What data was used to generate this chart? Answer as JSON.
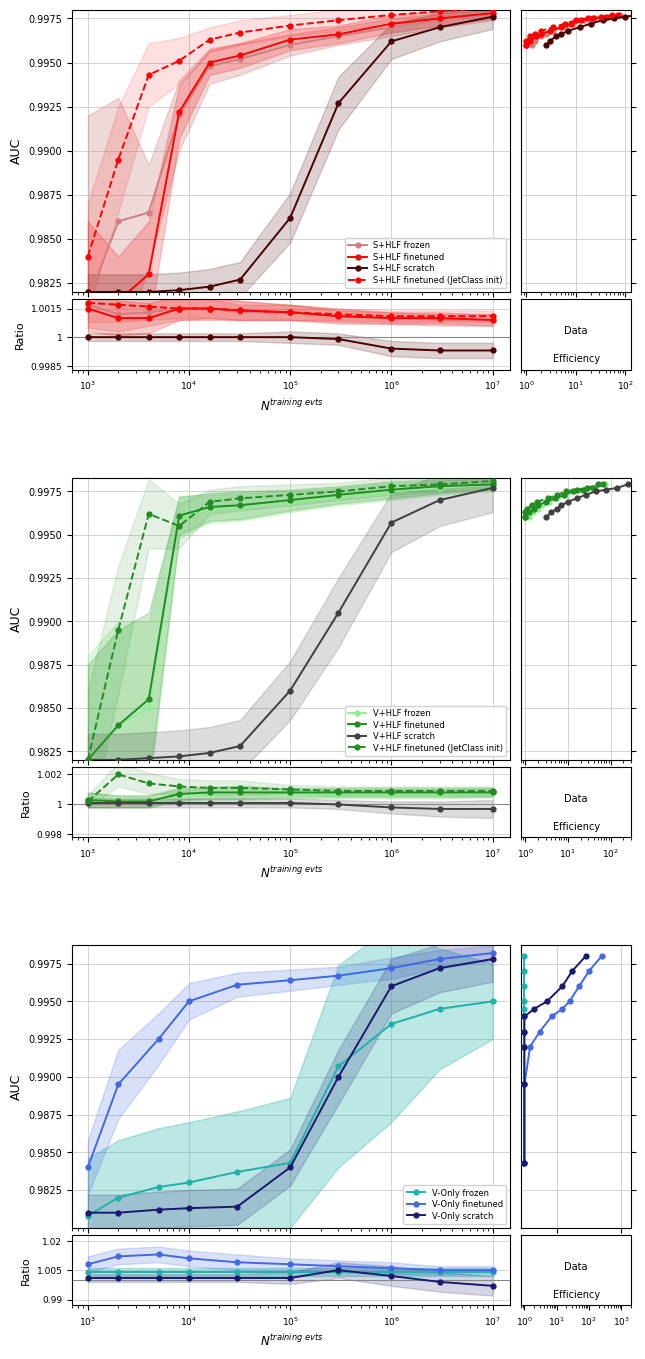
{
  "panel1": {
    "colors": {
      "frozen": "#cd8080",
      "finetuned": "#ff0000",
      "scratch": "#4a0000",
      "jetclass": "#ff0000"
    },
    "x_vals": [
      1000,
      2000,
      4000,
      8000,
      16000,
      32000,
      100000,
      300000,
      1000000,
      3000000,
      10000000
    ],
    "frozen_y": [
      0.9815,
      0.986,
      0.9865,
      0.992,
      0.9948,
      0.9952,
      0.996,
      0.9965,
      0.997,
      0.9974,
      0.9977
    ],
    "frozen_lo": [
      0.973,
      0.978,
      0.9835,
      0.99,
      0.9938,
      0.9943,
      0.9954,
      0.996,
      0.9965,
      0.997,
      0.9974
    ],
    "frozen_hi": [
      0.992,
      0.993,
      0.9892,
      0.994,
      0.9958,
      0.9961,
      0.9966,
      0.997,
      0.9975,
      0.9978,
      0.998
    ],
    "finetuned_y": [
      0.982,
      0.9815,
      0.983,
      0.9922,
      0.995,
      0.9954,
      0.9963,
      0.9966,
      0.9972,
      0.9975,
      0.9978
    ],
    "finetuned_lo": [
      0.978,
      0.979,
      0.98,
      0.9907,
      0.9943,
      0.9947,
      0.9957,
      0.9961,
      0.9967,
      0.9971,
      0.9975
    ],
    "finetuned_hi": [
      0.986,
      0.984,
      0.986,
      0.9937,
      0.9957,
      0.9961,
      0.9969,
      0.9971,
      0.9977,
      0.9979,
      0.9981
    ],
    "scratch_y": [
      0.982,
      0.982,
      0.982,
      0.9821,
      0.9823,
      0.9827,
      0.9862,
      0.9927,
      0.9962,
      0.997,
      0.9976
    ],
    "scratch_lo": [
      0.981,
      0.981,
      0.981,
      0.9811,
      0.9813,
      0.9817,
      0.9848,
      0.9912,
      0.9952,
      0.9962,
      0.9969
    ],
    "scratch_hi": [
      0.983,
      0.983,
      0.983,
      0.9831,
      0.9833,
      0.9837,
      0.9876,
      0.9942,
      0.9972,
      0.9978,
      0.9983
    ],
    "jetclass_y": [
      0.984,
      0.9895,
      0.9943,
      0.9951,
      0.9963,
      0.9967,
      0.9971,
      0.9974,
      0.9977,
      0.9979,
      0.9981
    ],
    "jetclass_lo": [
      0.981,
      0.9865,
      0.9925,
      0.9938,
      0.9956,
      0.996,
      0.9965,
      0.9968,
      0.9972,
      0.9975,
      0.9977
    ],
    "jetclass_hi": [
      0.987,
      0.9925,
      0.9961,
      0.9964,
      0.997,
      0.9974,
      0.9977,
      0.998,
      0.9982,
      0.9983,
      0.9985
    ],
    "ratio_frozen_y": [
      1.0017,
      1.0012,
      1.0013,
      1.0015,
      1.0015,
      1.0013,
      1.0013,
      1.0011,
      1.001,
      1.0009,
      1.0009
    ],
    "ratio_frozen_lo": [
      1.0005,
      1.0003,
      1.0006,
      1.0009,
      1.001,
      1.0009,
      1.0009,
      1.0007,
      1.0007,
      1.0006,
      1.0006
    ],
    "ratio_frozen_hi": [
      1.0029,
      1.0021,
      1.002,
      1.0021,
      1.002,
      1.0017,
      1.0017,
      1.0015,
      1.0013,
      1.0012,
      1.0012
    ],
    "ratio_finetuned_y": [
      1.0015,
      1.001,
      1.001,
      1.0015,
      1.0015,
      1.0014,
      1.0013,
      1.0011,
      1.001,
      1.001,
      1.0009
    ],
    "ratio_finetuned_lo": [
      1.0003,
      1.0001,
      1.0002,
      1.0009,
      1.0009,
      1.0009,
      1.0009,
      1.0008,
      1.0007,
      1.0007,
      1.0006
    ],
    "ratio_finetuned_hi": [
      1.0027,
      1.0019,
      1.0018,
      1.0021,
      1.0021,
      1.0019,
      1.0017,
      1.0014,
      1.0013,
      1.0013,
      1.0012
    ],
    "ratio_scratch_y": [
      1.0,
      1.0,
      1.0,
      1.0,
      1.0,
      1.0,
      1.0,
      0.9999,
      0.9994,
      0.9993,
      0.9993
    ],
    "ratio_scratch_lo": [
      0.9998,
      0.9998,
      0.9998,
      0.9998,
      0.9998,
      0.9998,
      0.9997,
      0.9996,
      0.999,
      0.9989,
      0.9989
    ],
    "ratio_scratch_hi": [
      1.0002,
      1.0002,
      1.0002,
      1.0002,
      1.0002,
      1.0002,
      1.0003,
      1.0002,
      0.9998,
      0.9997,
      0.9997
    ],
    "ratio_jetclass_y": [
      1.0018,
      1.0017,
      1.0016,
      1.0015,
      1.0015,
      1.0014,
      1.0013,
      1.0012,
      1.0011,
      1.0011,
      1.0011
    ],
    "ratio_jetclass_lo": [
      1.0008,
      1.0008,
      1.0009,
      1.001,
      1.001,
      1.0009,
      1.0009,
      1.0009,
      1.0008,
      1.0008,
      1.0008
    ],
    "ratio_jetclass_hi": [
      1.0028,
      1.0026,
      1.0023,
      1.002,
      1.002,
      1.0019,
      1.0017,
      1.0015,
      1.0014,
      1.0014,
      1.0014
    ],
    "eff_auc": [
      0.996,
      0.9962,
      0.9965,
      0.9966,
      0.9968,
      0.997,
      0.9972,
      0.9974,
      0.9975,
      0.9976,
      0.9977
    ],
    "eff_frozen_x": [
      1.3,
      1.5,
      2.0,
      2.5,
      3.5,
      6.0,
      9.0,
      15.0,
      25.0,
      45.0,
      80.0
    ],
    "eff_finetuned_x": [
      1.0,
      1.2,
      1.6,
      2.0,
      3.0,
      5.0,
      8.0,
      13.0,
      22.0,
      40.0,
      70.0
    ],
    "eff_scratch_x": [
      2.5,
      3.0,
      4.0,
      5.0,
      7.0,
      12.0,
      20.0,
      35.0,
      60.0,
      100.0,
      180.0
    ],
    "eff_jetclass_x": [
      1.0,
      1.0,
      1.2,
      1.5,
      2.0,
      3.5,
      6.0,
      10.0,
      18.0,
      32.0,
      55.0
    ],
    "legend_labels": [
      "S+HLF frozen",
      "S+HLF finetuned",
      "S+HLF scratch",
      "S+HLF finetuned (JetClass init)"
    ],
    "ylim": [
      0.982,
      0.998
    ],
    "yticks": [
      0.9825,
      0.985,
      0.9875,
      0.99,
      0.9925,
      0.995,
      0.9975
    ],
    "ratio_ylim": [
      0.9983,
      1.002
    ],
    "ratio_yticks": [
      0.9985,
      1.0,
      1.0015
    ],
    "eff_xlim": [
      0.8,
      130
    ],
    "eff_xticks": [
      1,
      10,
      100
    ],
    "ylabel": "AUC",
    "ratio_ylabel": "Ratio"
  },
  "panel2": {
    "colors": {
      "frozen": "#90ee90",
      "finetuned": "#228b22",
      "scratch": "#404040",
      "jetclass": "#228b22"
    },
    "x_vals": [
      1000,
      2000,
      4000,
      8000,
      16000,
      32000,
      100000,
      300000,
      1000000,
      3000000,
      10000000
    ],
    "frozen_y": [
      0.982,
      0.984,
      0.985,
      0.996,
      0.9965,
      0.9966,
      0.9969,
      0.9972,
      0.9975,
      0.9977,
      0.9979
    ],
    "frozen_lo": [
      0.976,
      0.978,
      0.98,
      0.9948,
      0.9957,
      0.9958,
      0.9963,
      0.9967,
      0.997,
      0.9973,
      0.9975
    ],
    "frozen_hi": [
      0.988,
      0.99,
      0.99,
      0.9972,
      0.9973,
      0.9974,
      0.9975,
      0.9977,
      0.998,
      0.9981,
      0.9983
    ],
    "finetuned_y": [
      0.982,
      0.984,
      0.9855,
      0.9961,
      0.9966,
      0.9967,
      0.997,
      0.9973,
      0.9976,
      0.9978,
      0.9979
    ],
    "finetuned_lo": [
      0.9765,
      0.9785,
      0.9805,
      0.995,
      0.9958,
      0.9959,
      0.9964,
      0.9968,
      0.9971,
      0.9974,
      0.9976
    ],
    "finetuned_hi": [
      0.9875,
      0.9895,
      0.9905,
      0.9972,
      0.9974,
      0.9975,
      0.9976,
      0.9978,
      0.9981,
      0.9982,
      0.9982
    ],
    "scratch_y": [
      0.982,
      0.982,
      0.9821,
      0.9822,
      0.9824,
      0.9828,
      0.986,
      0.9905,
      0.9957,
      0.997,
      0.9977
    ],
    "scratch_lo": [
      0.9805,
      0.9805,
      0.9806,
      0.9807,
      0.9809,
      0.9813,
      0.9843,
      0.9885,
      0.994,
      0.9955,
      0.9963
    ],
    "scratch_hi": [
      0.9835,
      0.9835,
      0.9836,
      0.9837,
      0.9839,
      0.9843,
      0.9877,
      0.9925,
      0.9974,
      0.9985,
      0.9991
    ],
    "jetclass_y": [
      0.982,
      0.9895,
      0.9962,
      0.9955,
      0.9969,
      0.9971,
      0.9973,
      0.9975,
      0.9978,
      0.9979,
      0.9981
    ],
    "jetclass_lo": [
      0.978,
      0.9858,
      0.9942,
      0.9942,
      0.9962,
      0.9964,
      0.9967,
      0.997,
      0.9973,
      0.9975,
      0.9977
    ],
    "jetclass_hi": [
      0.986,
      0.9932,
      0.9982,
      0.9968,
      0.9976,
      0.9978,
      0.9979,
      0.998,
      0.9983,
      0.9983,
      0.9985
    ],
    "ratio_frozen_y": [
      1.0003,
      1.0002,
      1.0002,
      1.0006,
      1.0007,
      1.0008,
      1.0007,
      1.0007,
      1.0007,
      1.0007,
      1.0008
    ],
    "ratio_frozen_lo": [
      0.9998,
      0.9998,
      0.9998,
      1.0002,
      1.0003,
      1.0003,
      1.0004,
      1.0004,
      1.0004,
      1.0004,
      1.0005
    ],
    "ratio_frozen_hi": [
      1.0008,
      1.0006,
      1.0006,
      1.001,
      1.0011,
      1.0013,
      1.001,
      1.001,
      1.001,
      1.001,
      1.0011
    ],
    "ratio_finetuned_y": [
      1.0003,
      1.0002,
      1.0002,
      1.0007,
      1.0008,
      1.0008,
      1.0008,
      1.0008,
      1.0008,
      1.0008,
      1.0008
    ],
    "ratio_finetuned_lo": [
      0.9998,
      0.9998,
      0.9998,
      1.0003,
      1.0004,
      1.0004,
      1.0005,
      1.0005,
      1.0005,
      1.0005,
      1.0005
    ],
    "ratio_finetuned_hi": [
      1.0008,
      1.0006,
      1.0006,
      1.0011,
      1.0012,
      1.0012,
      1.0011,
      1.0011,
      1.0011,
      1.0011,
      1.0011
    ],
    "ratio_scratch_y": [
      1.0001,
      1.0001,
      1.0001,
      1.0001,
      1.0001,
      1.0001,
      1.0001,
      1.0,
      0.9998,
      0.9997,
      0.9997
    ],
    "ratio_scratch_lo": [
      0.9998,
      0.9998,
      0.9998,
      0.9998,
      0.9998,
      0.9998,
      0.9998,
      0.9997,
      0.9994,
      0.9992,
      0.9991
    ],
    "ratio_scratch_hi": [
      1.0004,
      1.0004,
      1.0004,
      1.0004,
      1.0004,
      1.0004,
      1.0004,
      1.0003,
      1.0002,
      1.0002,
      1.0003
    ],
    "ratio_jetclass_y": [
      1.0002,
      1.002,
      1.0014,
      1.0012,
      1.0011,
      1.0011,
      1.001,
      1.0009,
      1.0009,
      1.0009,
      1.0009
    ],
    "ratio_jetclass_lo": [
      0.9998,
      1.0012,
      1.0007,
      1.0007,
      1.0006,
      1.0006,
      1.0007,
      1.0006,
      1.0006,
      1.0006,
      1.0006
    ],
    "ratio_jetclass_hi": [
      1.0006,
      1.0028,
      1.0021,
      1.0017,
      1.0016,
      1.0016,
      1.0013,
      1.0012,
      1.0012,
      1.0012,
      1.0012
    ],
    "eff_auc": [
      0.996,
      0.9963,
      0.9965,
      0.9967,
      0.9969,
      0.9971,
      0.9973,
      0.9975,
      0.9976,
      0.9977,
      0.9979
    ],
    "eff_frozen_x": [
      1.2,
      1.5,
      2.0,
      2.5,
      3.5,
      5.5,
      9.0,
      14.0,
      24.0,
      42.0,
      75.0
    ],
    "eff_finetuned_x": [
      1.0,
      1.2,
      1.6,
      2.0,
      3.0,
      5.0,
      8.0,
      13.0,
      22.0,
      38.0,
      65.0
    ],
    "eff_scratch_x": [
      3.0,
      4.0,
      5.5,
      7.0,
      10.0,
      16.0,
      26.0,
      45.0,
      80.0,
      140.0,
      250.0
    ],
    "eff_jetclass_x": [
      1.0,
      1.0,
      1.1,
      1.4,
      1.9,
      3.3,
      5.5,
      9.0,
      16.0,
      28.0,
      50.0
    ],
    "legend_labels": [
      "V+HLF frozen",
      "V+HLF finetuned",
      "V+HLF scratch",
      "V+HLF finetuned (JetClass init)"
    ],
    "ylim": [
      0.982,
      0.9983
    ],
    "yticks": [
      0.9825,
      0.985,
      0.9875,
      0.99,
      0.9925,
      0.995,
      0.9975
    ],
    "ratio_ylim": [
      0.9978,
      1.0025
    ],
    "ratio_yticks": [
      0.998,
      1.0,
      1.002
    ],
    "eff_xlim": [
      0.8,
      300
    ],
    "eff_xticks": [
      1,
      10,
      100
    ],
    "ylabel": "AUC",
    "ratio_ylabel": "Ratio"
  },
  "panel3": {
    "colors": {
      "frozen": "#20b2aa",
      "finetuned": "#4169e1",
      "scratch": "#191970"
    },
    "x_vals": [
      1000,
      2000,
      5000,
      10000,
      30000,
      100000,
      300000,
      1000000,
      3000000,
      10000000
    ],
    "frozen_y": [
      0.9808,
      0.982,
      0.9827,
      0.983,
      0.9837,
      0.9843,
      0.9907,
      0.9935,
      0.9945,
      0.995
    ],
    "frozen_lo": [
      0.977,
      0.9782,
      0.9788,
      0.979,
      0.9797,
      0.98,
      0.984,
      0.987,
      0.9905,
      0.9925
    ],
    "frozen_hi": [
      0.9846,
      0.9858,
      0.9866,
      0.987,
      0.9877,
      0.9886,
      0.9974,
      1.0,
      0.9985,
      0.9975
    ],
    "finetuned_y": [
      0.984,
      0.9895,
      0.9925,
      0.995,
      0.9961,
      0.9964,
      0.9967,
      0.9972,
      0.9978,
      0.9982
    ],
    "finetuned_lo": [
      0.9822,
      0.9872,
      0.9908,
      0.9938,
      0.9953,
      0.9957,
      0.9961,
      0.9965,
      0.9972,
      0.9977
    ],
    "finetuned_hi": [
      0.9858,
      0.9918,
      0.9942,
      0.9962,
      0.9969,
      0.9971,
      0.9973,
      0.9979,
      0.9984,
      0.9987
    ],
    "scratch_y": [
      0.981,
      0.981,
      0.9812,
      0.9813,
      0.9814,
      0.984,
      0.99,
      0.996,
      0.9972,
      0.9978
    ],
    "scratch_lo": [
      0.9798,
      0.9798,
      0.98,
      0.9801,
      0.9802,
      0.9828,
      0.9882,
      0.9942,
      0.9956,
      0.9963
    ],
    "scratch_hi": [
      0.9822,
      0.9822,
      0.9824,
      0.9825,
      0.9826,
      0.9852,
      0.9918,
      0.9978,
      0.9988,
      0.9993
    ],
    "ratio_frozen_y": [
      1.004,
      1.004,
      1.004,
      1.004,
      1.004,
      1.004,
      1.004,
      1.004,
      1.004,
      1.004
    ],
    "ratio_frozen_lo": [
      1.002,
      1.002,
      1.002,
      1.002,
      1.002,
      1.002,
      1.002,
      1.002,
      1.002,
      1.002
    ],
    "ratio_frozen_hi": [
      1.006,
      1.006,
      1.006,
      1.006,
      1.006,
      1.006,
      1.006,
      1.006,
      1.006,
      1.006
    ],
    "ratio_finetuned_y": [
      1.008,
      1.012,
      1.013,
      1.011,
      1.009,
      1.008,
      1.007,
      1.006,
      1.005,
      1.005
    ],
    "ratio_finetuned_lo": [
      1.004,
      1.008,
      1.009,
      1.007,
      1.005,
      1.005,
      1.004,
      1.003,
      1.003,
      1.003
    ],
    "ratio_finetuned_hi": [
      1.012,
      1.016,
      1.017,
      1.015,
      1.013,
      1.011,
      1.01,
      1.009,
      1.007,
      1.007
    ],
    "ratio_scratch_y": [
      1.001,
      1.001,
      1.001,
      1.001,
      1.001,
      1.001,
      1.005,
      1.002,
      0.999,
      0.997
    ],
    "ratio_scratch_lo": [
      0.999,
      0.999,
      0.999,
      0.999,
      0.999,
      0.998,
      1.001,
      0.997,
      0.994,
      0.992
    ],
    "ratio_scratch_hi": [
      1.003,
      1.003,
      1.003,
      1.003,
      1.003,
      1.004,
      1.009,
      1.007,
      1.004,
      1.002
    ],
    "eff_auc": [
      0.9843,
      0.9895,
      0.992,
      0.993,
      0.994,
      0.9945,
      0.995,
      0.996,
      0.997,
      0.998
    ],
    "eff_frozen_x": [
      1.0,
      1.0,
      1.0,
      1.0,
      1.0,
      1.0,
      1.0,
      1.0,
      1.0,
      1.0
    ],
    "eff_finetuned_x": [
      1.0,
      1.0,
      1.5,
      3.0,
      7.0,
      15.0,
      25.0,
      50.0,
      100.0,
      250.0
    ],
    "eff_scratch_x": [
      1.0,
      1.0,
      1.0,
      1.0,
      1.0,
      2.0,
      5.0,
      15.0,
      30.0,
      80.0
    ],
    "legend_labels": [
      "V-Only frozen",
      "V-Only finetuned",
      "V-Only scratch"
    ],
    "ylim": [
      0.98,
      0.9987
    ],
    "yticks": [
      0.9825,
      0.985,
      0.9875,
      0.99,
      0.9925,
      0.995,
      0.9975
    ],
    "ratio_ylim": [
      0.987,
      1.023
    ],
    "ratio_yticks": [
      0.99,
      1.005,
      1.02
    ],
    "eff_xlim": [
      0.8,
      2000
    ],
    "eff_xticks": [
      1,
      10,
      100,
      1000
    ],
    "ylabel": "AUC",
    "ratio_ylabel": "Ratio"
  }
}
